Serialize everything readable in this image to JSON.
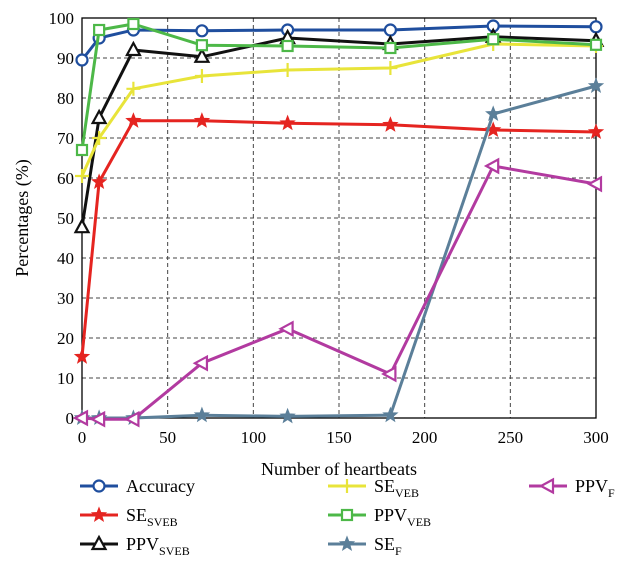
{
  "chart_data": {
    "type": "line",
    "xlabel": "Number of heartbeats",
    "ylabel": "Percentages (%)",
    "xlim": [
      0,
      300
    ],
    "ylim": [
      0,
      100
    ],
    "x_ticks": [
      0,
      50,
      100,
      150,
      200,
      250,
      300
    ],
    "y_ticks": [
      0,
      10,
      20,
      30,
      40,
      50,
      60,
      70,
      80,
      90,
      100
    ],
    "grid": "dashed",
    "legend_placement": "bottom",
    "x": [
      0,
      10,
      30,
      70,
      120,
      180,
      240,
      300
    ],
    "series": [
      {
        "name": "Accuracy",
        "name_main": "Accuracy",
        "name_sub": "",
        "color": "#1f4e9e",
        "marker": "circle",
        "values": [
          89.5,
          95,
          97,
          96.8,
          97,
          97,
          98,
          97.8
        ]
      },
      {
        "name": "SE_SVEB",
        "name_main": "SE",
        "name_sub": "SVEB",
        "color": "#e52420",
        "marker": "star",
        "values": [
          15.3,
          59,
          74.3,
          74.3,
          73.7,
          73.3,
          72,
          71.5
        ]
      },
      {
        "name": "PPV_SVEB",
        "name_main": "PPV",
        "name_sub": "SVEB",
        "color": "#111111",
        "marker": "triangle-up",
        "values": [
          47.7,
          75,
          92,
          90.3,
          95,
          93.5,
          95.3,
          94.3
        ]
      },
      {
        "name": "SE_VEB",
        "name_main": "SE",
        "name_sub": "VEB",
        "color": "#e8e43a",
        "marker": "plus",
        "values": [
          60.5,
          70,
          82.3,
          85.5,
          87,
          87.5,
          93.5,
          93
        ]
      },
      {
        "name": "PPV_VEB",
        "name_main": "PPV",
        "name_sub": "VEB",
        "color": "#4db848",
        "marker": "square",
        "values": [
          67,
          97,
          98.5,
          93.2,
          93,
          92.5,
          94.7,
          93.3
        ]
      },
      {
        "name": "SE_F",
        "name_main": "SE",
        "name_sub": "F",
        "color": "#5b7f99",
        "marker": "star",
        "values": [
          0,
          0,
          0,
          0.7,
          0.4,
          0.7,
          76,
          83
        ]
      },
      {
        "name": "PPV_F",
        "name_main": "PPV",
        "name_sub": "F",
        "color": "#b23aa0",
        "marker": "triangle-left",
        "values": [
          0,
          -0.3,
          -0.3,
          13.7,
          22.3,
          11,
          63,
          58.5
        ]
      }
    ]
  }
}
